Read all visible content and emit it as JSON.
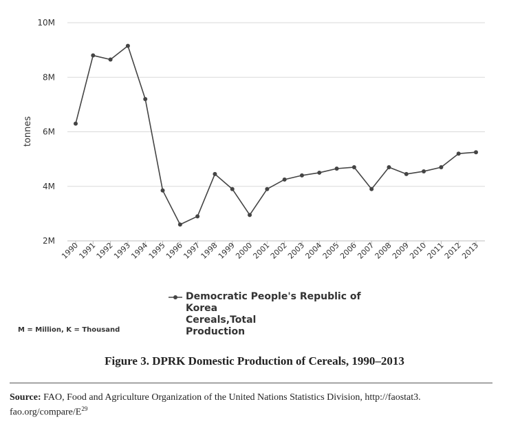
{
  "chart_data": {
    "type": "line",
    "ylabel": "tonnes",
    "ylim": [
      2000000,
      10000000
    ],
    "yticks": [
      {
        "value": 2000000,
        "label": "2M"
      },
      {
        "value": 4000000,
        "label": "4M"
      },
      {
        "value": 6000000,
        "label": "6M"
      },
      {
        "value": 8000000,
        "label": "8M"
      },
      {
        "value": 10000000,
        "label": "10M"
      }
    ],
    "categories": [
      "1990",
      "1991",
      "1992",
      "1993",
      "1994",
      "1995",
      "1996",
      "1997",
      "1998",
      "1999",
      "2000",
      "2001",
      "2002",
      "2003",
      "2004",
      "2005",
      "2006",
      "2007",
      "2008",
      "2009",
      "2010",
      "2011",
      "2012",
      "2013"
    ],
    "series": [
      {
        "name": "Democratic People's Republic of Korea Cereals,Total Production",
        "values": [
          6300000,
          8800000,
          8650000,
          9150000,
          7200000,
          3850000,
          2600000,
          2900000,
          4450000,
          3900000,
          2950000,
          3900000,
          4250000,
          4400000,
          4500000,
          4650000,
          4700000,
          3900000,
          4700000,
          4450000,
          4550000,
          4700000,
          5200000,
          5250000
        ],
        "color": "#444444"
      }
    ],
    "legend_lines": [
      "Democratic People's Republic of Korea",
      "Cereals,Total",
      "Production"
    ],
    "units_note": "M = Million, K = Thousand",
    "grid": true,
    "grid_color": "#d9d9d9"
  },
  "caption": "Figure 3. DPRK Domestic Production of Cereals, 1990–2013",
  "source": {
    "label": "Source:",
    "text": "FAO, Food and Agriculture Organization of the United Nations Statistics Division, http://faostat3.",
    "text_line2": "fao.org/compare/E",
    "footnote": "29"
  }
}
